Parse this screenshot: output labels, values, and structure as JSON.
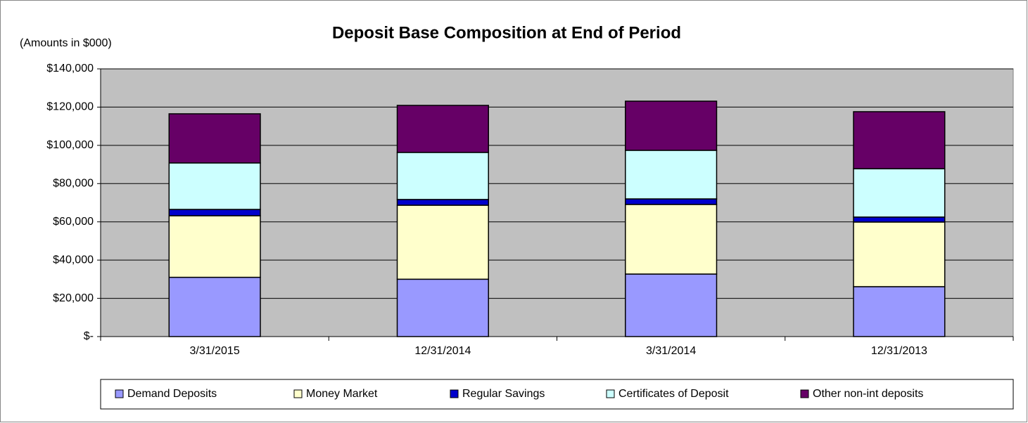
{
  "chart_data": {
    "type": "bar",
    "stacked": true,
    "title": "Deposit Base Composition at End of Period",
    "subtitle": "(Amounts in $000)",
    "categories": [
      "3/31/2015",
      "12/31/2014",
      "3/31/2014",
      "12/31/2013"
    ],
    "series": [
      {
        "name": "Demand Deposits",
        "color": "#9999ff",
        "values": [
          31000,
          30000,
          32700,
          26100
        ]
      },
      {
        "name": "Money Market",
        "color": "#ffffcc",
        "values": [
          32200,
          38700,
          36400,
          33800
        ]
      },
      {
        "name": "Regular Savings",
        "color": "#0000cc",
        "values": [
          3300,
          3000,
          2900,
          2600
        ]
      },
      {
        "name": "Certificates of Deposit",
        "color": "#ccffff",
        "values": [
          24300,
          24600,
          25400,
          25300
        ]
      },
      {
        "name": "Other non-int deposits",
        "color": "#660066",
        "values": [
          25700,
          24600,
          25700,
          29800
        ]
      }
    ],
    "ylim": [
      0,
      140000
    ],
    "yticks": [
      {
        "value": 0,
        "label": "$-"
      },
      {
        "value": 20000,
        "label": "$20,000"
      },
      {
        "value": 40000,
        "label": "$40,000"
      },
      {
        "value": 60000,
        "label": "$60,000"
      },
      {
        "value": 80000,
        "label": "$80,000"
      },
      {
        "value": 100000,
        "label": "$100,000"
      },
      {
        "value": 120000,
        "label": "$120,000"
      },
      {
        "value": 140000,
        "label": "$140,000"
      }
    ],
    "grid": true,
    "legend": "bottom"
  }
}
